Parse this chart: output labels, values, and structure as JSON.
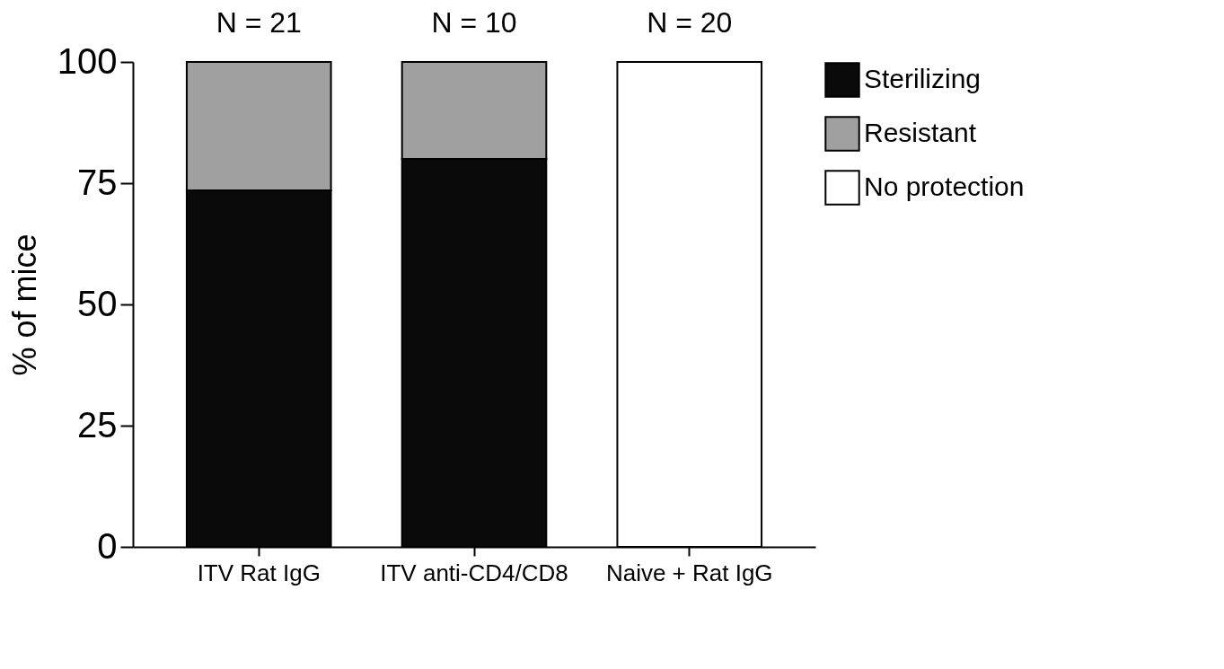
{
  "chart_data": {
    "type": "bar",
    "stacked": true,
    "ylabel": "% of mice",
    "categories": [
      "ITV Rat IgG",
      "ITV anti-CD4/CD8",
      "Naive + Rat IgG"
    ],
    "series": [
      {
        "name": "Sterilizing",
        "color": "#0a0a0a",
        "values": [
          73.5,
          80,
          0
        ]
      },
      {
        "name": "Resistant",
        "color": "#a0a0a0",
        "values": [
          26.5,
          20,
          0
        ]
      },
      {
        "name": "No protection",
        "color": "#ffffff",
        "values": [
          0,
          0,
          100
        ]
      }
    ],
    "ylim": [
      0,
      100
    ],
    "yticks": [
      0,
      25,
      50,
      75,
      100
    ],
    "grid": false,
    "legend": "right",
    "annotations": [
      {
        "text": "N = 21",
        "x": "ITV Rat IgG",
        "y": 100
      },
      {
        "text": "N = 10",
        "x": "ITV anti-CD4/CD8",
        "y": 100
      },
      {
        "text": "N = 20",
        "x": "Naive + Rat IgG",
        "y": 100
      }
    ]
  }
}
